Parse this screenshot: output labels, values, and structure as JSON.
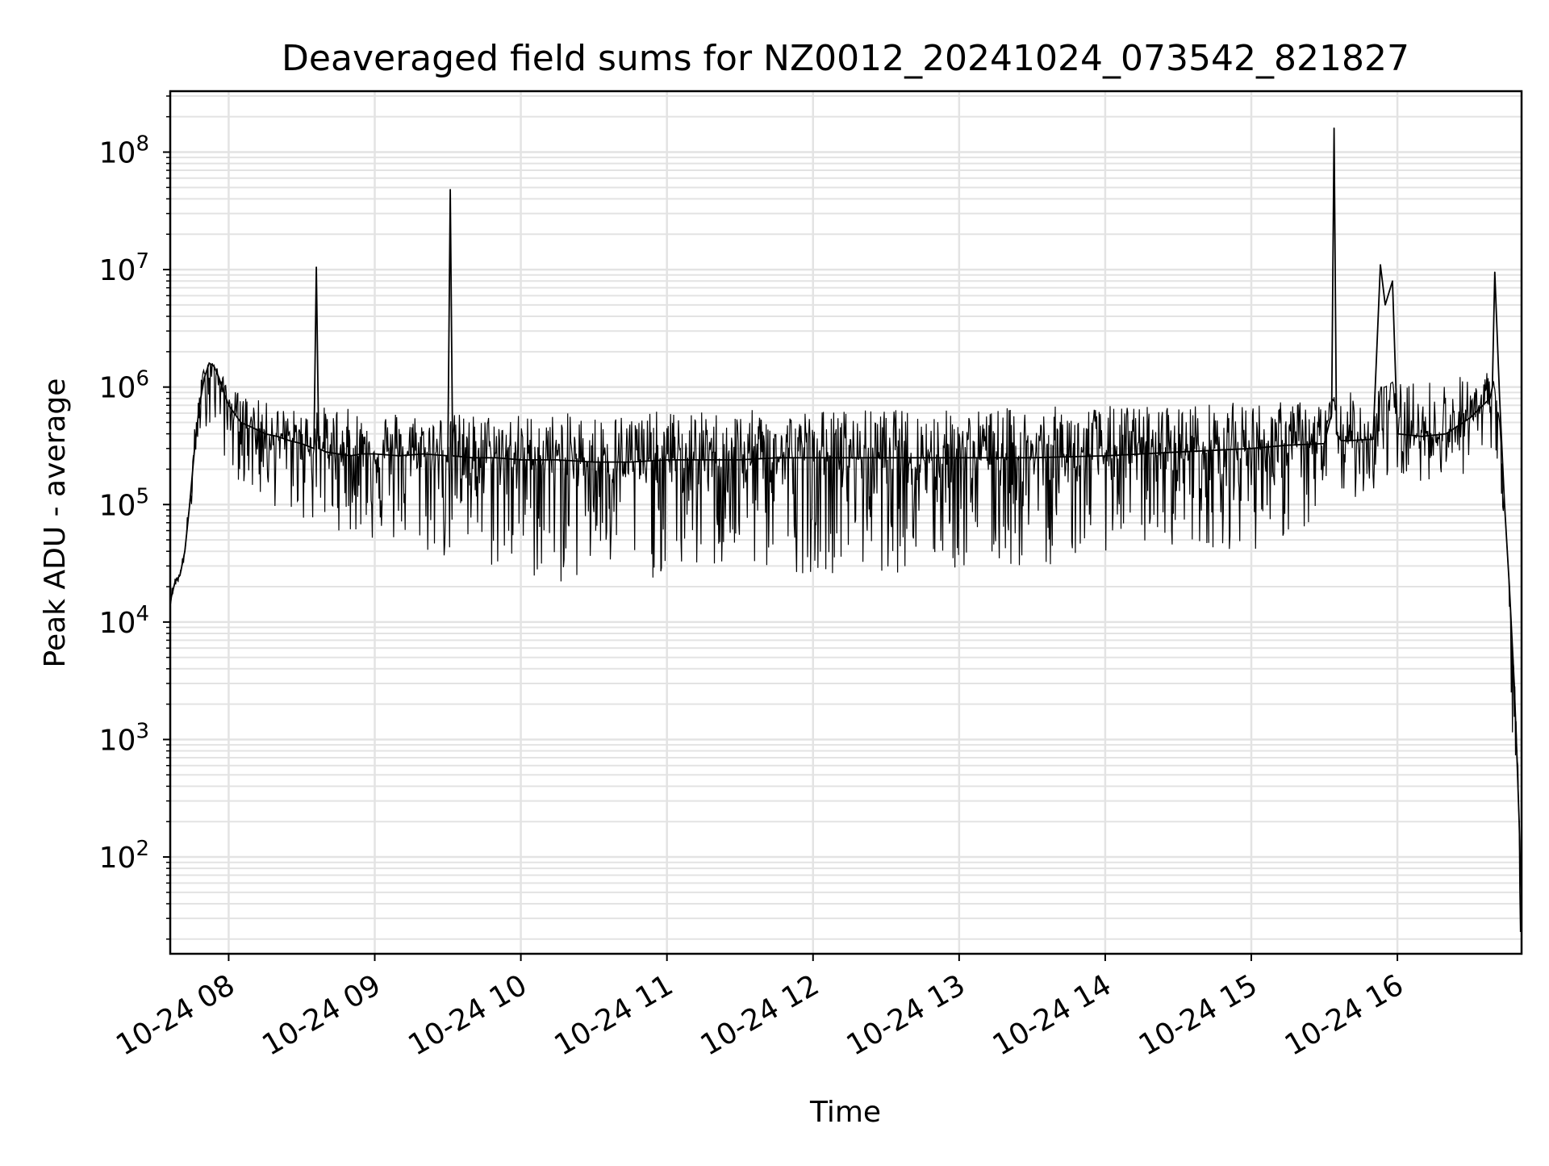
{
  "chart_data": {
    "type": "line",
    "title": "Deaveraged field sums for NZ0012_20241024_073542_821827",
    "xlabel": "Time",
    "ylabel": "Peak ADU - average",
    "yscale": "log",
    "xlim": [
      "10-24 07:36",
      "10-24 16:51"
    ],
    "ylim": [
      15,
      330000000
    ],
    "grid": true,
    "line_color": "#000000",
    "grid_color": "#e3e3e3",
    "x_ticks": [
      {
        "time": "10-24 08:00",
        "label": "10-24 08"
      },
      {
        "time": "10-24 09:00",
        "label": "10-24 09"
      },
      {
        "time": "10-24 10:00",
        "label": "10-24 10"
      },
      {
        "time": "10-24 11:00",
        "label": "10-24 11"
      },
      {
        "time": "10-24 12:00",
        "label": "10-24 12"
      },
      {
        "time": "10-24 13:00",
        "label": "10-24 13"
      },
      {
        "time": "10-24 14:00",
        "label": "10-24 14"
      },
      {
        "time": "10-24 15:00",
        "label": "10-24 15"
      },
      {
        "time": "10-24 16:00",
        "label": "10-24 16"
      }
    ],
    "y_ticks": [
      {
        "value": 100,
        "base": "10",
        "exp": "2"
      },
      {
        "value": 1000,
        "base": "10",
        "exp": "3"
      },
      {
        "value": 10000,
        "base": "10",
        "exp": "4"
      },
      {
        "value": 100000,
        "base": "10",
        "exp": "5"
      },
      {
        "value": 1000000,
        "base": "10",
        "exp": "6"
      },
      {
        "value": 10000000,
        "base": "10",
        "exp": "7"
      },
      {
        "value": 100000000,
        "base": "10",
        "exp": "8"
      }
    ],
    "series": [
      {
        "x": [
          "07:36",
          "07:38",
          "07:40",
          "07:42",
          "07:44",
          "07:46",
          "07:48",
          "07:50",
          "07:52",
          "07:54",
          "07:56",
          "07:58",
          "08:00",
          "08:05",
          "08:10",
          "08:15",
          "08:20",
          "08:25",
          "08:30",
          "08:35",
          "08:36",
          "08:37",
          "08:40",
          "08:45",
          "08:50",
          "08:55",
          "09:00",
          "09:10",
          "09:20",
          "09:30",
          "09:31",
          "09:32",
          "09:40",
          "09:50",
          "10:00",
          "10:15",
          "10:30",
          "10:45",
          "11:00",
          "11:15",
          "11:30",
          "11:45",
          "12:00",
          "12:30",
          "13:00",
          "13:30",
          "14:00",
          "14:30",
          "15:00",
          "15:15",
          "15:30",
          "15:33",
          "15:34",
          "15:35",
          "15:37",
          "15:40",
          "15:50",
          "15:53",
          "15:55",
          "15:58",
          "16:00",
          "16:10",
          "16:20",
          "16:30",
          "16:38",
          "16:39",
          "16:40",
          "16:42",
          "16:44",
          "16:46",
          "16:48",
          "16:49",
          "16:50",
          "16:51"
        ],
        "y": [
          15000,
          22000,
          25000,
          40000,
          100000,
          300000,
          700000,
          1200000,
          1600000,
          1500000,
          1200000,
          900000,
          700000,
          500000,
          450000,
          400000,
          380000,
          350000,
          330000,
          300000,
          10500000,
          300000,
          280000,
          270000,
          260000,
          270000,
          270000,
          260000,
          270000,
          260000,
          48000000,
          260000,
          250000,
          250000,
          240000,
          240000,
          230000,
          230000,
          240000,
          240000,
          240000,
          250000,
          250000,
          250000,
          250000,
          250000,
          260000,
          280000,
          300000,
          320000,
          330000,
          600000,
          160000000,
          400000,
          350000,
          350000,
          360000,
          11000000,
          5000000,
          8000000,
          400000,
          380000,
          400000,
          550000,
          800000,
          1000000,
          9500000,
          800000,
          100000,
          20000,
          3000,
          800,
          200,
          30
        ],
        "min": [
          14000,
          20000,
          22000,
          35000,
          60000,
          150000,
          350000,
          500000,
          400000,
          350000,
          300000,
          250000,
          200000,
          150000,
          110000,
          100000,
          90000,
          80000,
          70000,
          60000,
          60000,
          60000,
          60000,
          60000,
          55000,
          50000,
          45000,
          40000,
          35000,
          30000,
          30000,
          30000,
          28000,
          25000,
          22000,
          20000,
          21000,
          22000,
          23000,
          24000,
          25000,
          25000,
          26000,
          26000,
          25000,
          27000,
          40000,
          45000,
          40000,
          50000,
          60000,
          80000,
          100000,
          100000,
          110000,
          110000,
          120000,
          130000,
          140000,
          150000,
          150000,
          160000,
          170000,
          180000,
          200000,
          200000,
          150000,
          80000,
          15000,
          2000,
          500,
          150,
          25,
          15
        ],
        "max": [
          18000,
          24000,
          28000,
          45000,
          140000,
          450000,
          1000000,
          1600000,
          1700000,
          1600000,
          1400000,
          1200000,
          1000000,
          900000,
          800000,
          750000,
          700000,
          650000,
          650000,
          600000,
          650000,
          650000,
          700000,
          700000,
          650000,
          650000,
          650000,
          650000,
          600000,
          600000,
          600000,
          600000,
          600000,
          600000,
          600000,
          600000,
          600000,
          620000,
          620000,
          620000,
          640000,
          640000,
          650000,
          650000,
          650000,
          680000,
          700000,
          720000,
          750000,
          760000,
          780000,
          800000,
          820000,
          850000,
          900000,
          900000,
          950000,
          1000000,
          1000000,
          1100000,
          1100000,
          1150000,
          1200000,
          1300000,
          1400000,
          1300000,
          1000000,
          500000,
          100000,
          20000,
          4000,
          1200,
          300,
          50
        ]
      }
    ]
  }
}
